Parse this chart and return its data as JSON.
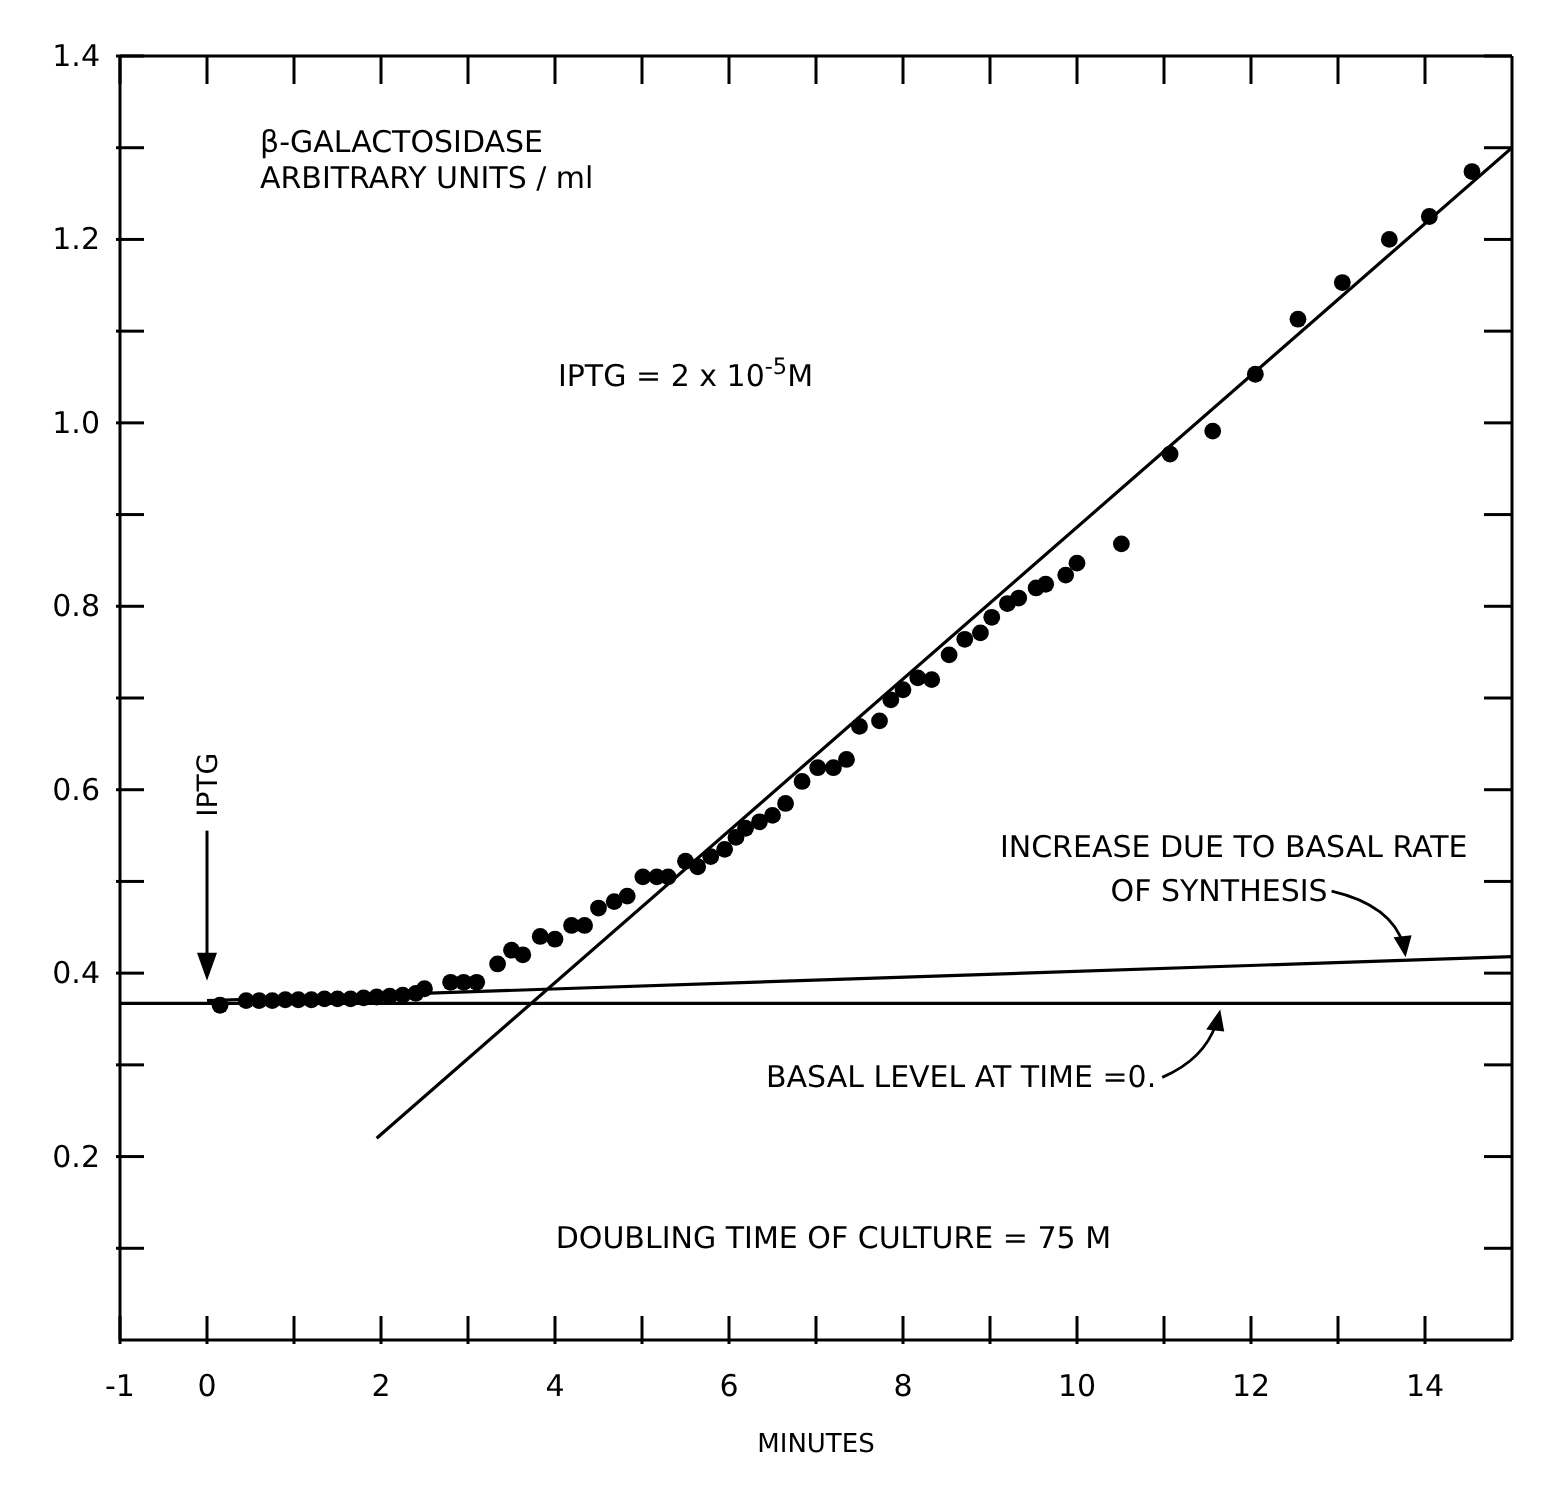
{
  "chart_data": {
    "type": "scatter",
    "xlabel": "MINUTES",
    "ylabel": "β-GALACTOSIDASE ARBITRARY UNITS / ml",
    "xlim": [
      -1,
      15
    ],
    "ylim": [
      0,
      1.4
    ],
    "xticks": [
      -1,
      0,
      {
        "value": 1,
        "label": null
      },
      2,
      {
        "value": 3,
        "label": null
      },
      4,
      {
        "value": 5,
        "label": null
      },
      6,
      {
        "value": 7,
        "label": null
      },
      8,
      {
        "value": 9,
        "label": null
      },
      10,
      {
        "value": 11,
        "label": null
      },
      12,
      {
        "value": 13,
        "label": null
      },
      14
    ],
    "yticks": [
      {
        "value": 0.1,
        "label": null
      },
      0.2,
      {
        "value": 0.3,
        "label": null
      },
      0.4,
      {
        "value": 0.5,
        "label": null
      },
      0.6,
      {
        "value": 0.7,
        "label": null
      },
      0.8,
      {
        "value": 0.9,
        "label": null
      },
      {
        "value": 1,
        "label": "1.0"
      },
      {
        "value": 1.1,
        "label": null
      },
      1.2,
      {
        "value": 1.3,
        "label": null
      },
      1.4
    ],
    "series": [
      {
        "color": "#000000",
        "marker": "circle",
        "x": [
          0.15,
          0.45,
          0.6,
          0.75,
          0.9,
          1.05,
          1.2,
          1.35,
          1.5,
          1.65,
          1.8,
          1.95,
          2.1,
          2.25,
          2.4,
          2.5,
          2.8,
          2.95,
          3.1,
          3.34,
          3.5,
          3.63,
          3.83,
          4.0,
          4.19,
          4.34,
          4.5,
          4.68,
          4.83,
          5.01,
          5.17,
          5.3,
          5.5,
          5.64,
          5.79,
          5.95,
          6.08,
          6.19,
          6.35,
          6.5,
          6.65,
          6.84,
          7.02,
          7.2,
          7.35,
          7.5,
          7.73,
          7.86,
          8.0,
          8.17,
          8.33,
          8.53,
          8.71,
          8.89,
          9.02,
          9.2,
          9.33,
          9.53,
          9.64,
          9.87,
          10.0,
          10.51,
          11.07,
          11.56,
          12.05,
          12.54,
          13.05,
          13.59,
          14.05,
          14.54
        ],
        "values": [
          0.365,
          0.37,
          0.37,
          0.37,
          0.371,
          0.371,
          0.371,
          0.372,
          0.372,
          0.372,
          0.373,
          0.374,
          0.375,
          0.376,
          0.378,
          0.383,
          0.39,
          0.39,
          0.39,
          0.41,
          0.425,
          0.42,
          0.44,
          0.437,
          0.452,
          0.452,
          0.471,
          0.478,
          0.484,
          0.505,
          0.505,
          0.505,
          0.522,
          0.516,
          0.527,
          0.535,
          0.548,
          0.558,
          0.565,
          0.572,
          0.585,
          0.609,
          0.624,
          0.624,
          0.633,
          0.669,
          0.675,
          0.698,
          0.709,
          0.722,
          0.72,
          0.747,
          0.764,
          0.771,
          0.788,
          0.803,
          0.809,
          0.82,
          0.824,
          0.834,
          0.847,
          0.868,
          0.966,
          0.991,
          1.053,
          1.113,
          1.153,
          1.2,
          1.225,
          1.274
        ]
      },
      {
        "type": "line",
        "color": "#000000",
        "x": [
          1.95,
          15
        ],
        "values": [
          0.22,
          1.3
        ]
      },
      {
        "type": "line",
        "color": "#000000",
        "x": [
          0,
          15
        ],
        "values": [
          0.37,
          0.418
        ]
      }
    ],
    "ref_lines": [
      {
        "axis": "y",
        "value": 0.367,
        "label": "BASAL LEVEL AT TIME =0.",
        "color": "#000000"
      }
    ],
    "annotations": [
      "IPTG = 2 x 10$^{-5}$M",
      "IPTG",
      {
        "text": "INCREASE DUE TO BASAL RATE OF SYNTHESIS",
        "x": 13.8,
        "y": 0.413
      },
      "DOUBLING TIME OF CULTURE = 75 M"
    ]
  }
}
